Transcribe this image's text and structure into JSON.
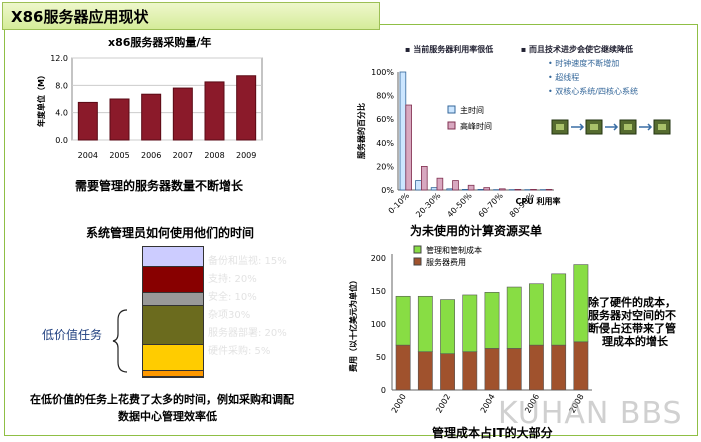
{
  "page_title": "X86服务器应用现状",
  "chart_top_left": {
    "type": "bar",
    "title": "x86服务器采购量/年",
    "ylabel": "年度单位（M）",
    "categories": [
      "2004",
      "2005",
      "2006",
      "2007",
      "2008",
      "2009"
    ],
    "values": [
      5.5,
      6.0,
      6.7,
      7.6,
      8.5,
      9.4
    ],
    "ylim": [
      0,
      12
    ],
    "yticks": [
      "0.0",
      "4.0",
      "8.0",
      "12.0"
    ],
    "caption": "需要管理的服务器数量不断增长",
    "bar_color": "#8b1a2a"
  },
  "chart_top_right": {
    "type": "bar",
    "ylabel": "服务器的百分比",
    "xlabel": "CPU 利用率",
    "categories": [
      "0-10%",
      "10-20%",
      "20-30%",
      "30-40%",
      "40-50%",
      "50-60%",
      "60-70%",
      "70-80%",
      "80-90%",
      "90-100%"
    ],
    "xticks": [
      "0-10%",
      "20-30%",
      "40-50%",
      "60-70%",
      "80-90%"
    ],
    "yticks": [
      "0%",
      "20%",
      "40%",
      "60%",
      "80%",
      "100%"
    ],
    "ylim": [
      0,
      100
    ],
    "series": [
      {
        "name": "主时间",
        "values": [
          100,
          8,
          2,
          1,
          0.5,
          0.5,
          0.3,
          0.3,
          0.3,
          0.3
        ]
      },
      {
        "name": "高峰时间",
        "values": [
          72,
          20,
          10,
          8,
          4,
          2,
          1,
          0.5,
          0.5,
          0.5
        ]
      }
    ],
    "caption": "为未使用的计算资源买单",
    "bullets": [
      "当前服务器利用率很低",
      "而且技术进步会使它继续降低"
    ],
    "sub_bullets": [
      "时钟速度不断增加",
      "超线程",
      "双核心系统/四核心系统"
    ]
  },
  "chart_bottom_left": {
    "type": "stacked-bar",
    "title": "系统管理员如何使用他们的时间",
    "segments": [
      {
        "label": "备份和监视: 15%",
        "value": 15,
        "color": "#ccccff"
      },
      {
        "label": "支持: 20%",
        "value": 20,
        "color": "#880000"
      },
      {
        "label": "安全: 10%",
        "value": 10,
        "color": "#999999"
      },
      {
        "label": "杂项30%",
        "value": 30,
        "color": "#6b6b1e"
      },
      {
        "label": "服务器部署: 20%",
        "value": 20,
        "color": "#ffcc00"
      },
      {
        "label": "硬件采购: 5%",
        "value": 5,
        "color": "#ff9900"
      }
    ],
    "bracket_label": "低价值任务",
    "caption_line1": "在低价值的任务上花费了太多的时间，例如采购和调配",
    "caption_line2": "数据中心管理效率低"
  },
  "chart_bottom_right": {
    "type": "stacked-bar",
    "ylabel": "费用（以十亿美元为单位）",
    "categories": [
      "2000",
      "2001",
      "2002",
      "2003",
      "2004",
      "2005",
      "2006",
      "2007",
      "2008"
    ],
    "xticks": [
      "2000",
      "2002",
      "2004",
      "2006",
      "2008"
    ],
    "yticks": [
      "0",
      "50",
      "100",
      "150",
      "200"
    ],
    "ylim": [
      0,
      200
    ],
    "series": [
      {
        "name": "服务器费用",
        "values": [
          68,
          58,
          55,
          58,
          63,
          63,
          68,
          68,
          73
        ],
        "color": "#a0522d"
      },
      {
        "name": "管理和管制成本",
        "values": [
          74,
          84,
          82,
          86,
          85,
          93,
          93,
          108,
          117
        ],
        "color": "#88dd44"
      }
    ],
    "legend": [
      "管理和管制成本",
      "服务器费用"
    ],
    "caption": "管理成本占IT的大部分",
    "side_text": [
      "除了硬件的成本，",
      "服务器对空间的不",
      "断侵占还带来了管",
      "理成本的增长"
    ]
  },
  "watermark": "KUHAN BBS"
}
